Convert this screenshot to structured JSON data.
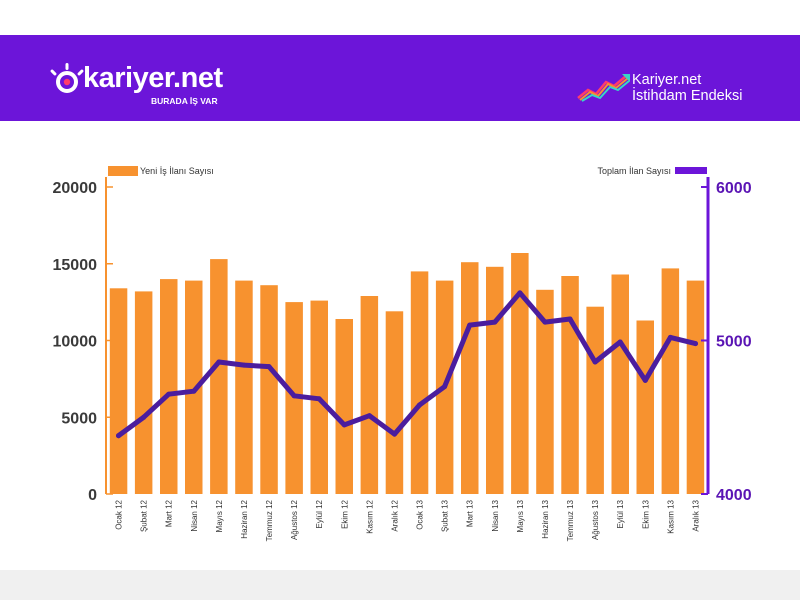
{
  "header": {
    "brand": "kariyer.net",
    "tagline": "BURADA İŞ VAR",
    "index_line1": "Kariyer.net",
    "index_line2": "İstihdam Endeksi"
  },
  "colors": {
    "header_bg": "#6c15d9",
    "bar": "#f7922f",
    "line": "#4b1d9e",
    "left_axis": "#f7922f",
    "right_axis": "#6c15d9"
  },
  "chart_data": {
    "type": "bar+line",
    "categories": [
      "Ocak 12",
      "Şubat 12",
      "Mart 12",
      "Nisan 12",
      "Mayıs 12",
      "Haziran 12",
      "Temmuz 12",
      "Ağustos 12",
      "Eylül 12",
      "Ekim 12",
      "Kasım 12",
      "Aralık 12",
      "Ocak 13",
      "Şubat 13",
      "Mart 13",
      "Nisan 13",
      "Mayıs 13",
      "Haziran 13",
      "Temmuz 13",
      "Ağustos 13",
      "Eylül 13",
      "Ekim 13",
      "Kasım 13",
      "Aralık 13"
    ],
    "series": [
      {
        "name": "Yeni İş İlanı Sayısı",
        "type": "bar",
        "axis": "left",
        "values": [
          13400,
          13200,
          14000,
          13900,
          15300,
          13900,
          13600,
          12500,
          12600,
          11400,
          12900,
          11900,
          14500,
          13900,
          15100,
          14800,
          15700,
          13300,
          14200,
          12200,
          14300,
          11300,
          14700,
          13900
        ]
      },
      {
        "name": "Toplam İlan Sayısı",
        "type": "line",
        "axis": "right",
        "values": [
          4380,
          4500,
          4650,
          4670,
          4860,
          4840,
          4830,
          4640,
          4620,
          4450,
          4510,
          4390,
          4580,
          4700,
          5100,
          5120,
          5310,
          5120,
          5140,
          4860,
          4990,
          4740,
          5020,
          4980
        ]
      }
    ],
    "left_axis": {
      "ticks": [
        "0",
        "5000",
        "10000",
        "15000",
        "20000"
      ],
      "ylim": [
        0,
        20000
      ]
    },
    "right_axis": {
      "ticks": [
        "4000",
        "5000",
        "6000"
      ],
      "ylim": [
        4000,
        6000
      ]
    },
    "legend_left": "top-left",
    "legend_right": "top-right",
    "grid": false
  }
}
